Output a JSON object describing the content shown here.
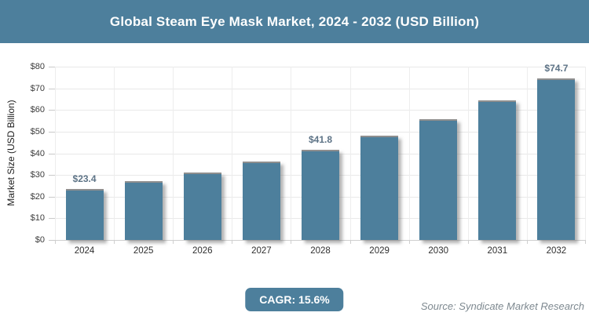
{
  "header": {
    "title": "Global Steam Eye Mask Market, 2024 - 2032 (USD Billion)",
    "background_color": "#4d7f9c",
    "text_color": "#ffffff"
  },
  "chart_data": {
    "type": "bar",
    "title": "Global Steam Eye Mask Market, 2024 - 2032 (USD Billion)",
    "xlabel": "",
    "ylabel": "Market Size (USD Billion)",
    "categories": [
      "2024",
      "2025",
      "2026",
      "2027",
      "2028",
      "2029",
      "2030",
      "2031",
      "2032"
    ],
    "values": [
      23.4,
      27.1,
      31.3,
      36.1,
      41.8,
      48.3,
      55.9,
      64.6,
      74.7
    ],
    "data_labels": [
      "$23.4",
      null,
      null,
      null,
      "$41.8",
      null,
      null,
      null,
      "$74.7"
    ],
    "ylim": [
      0,
      80
    ],
    "ytick_step": 10,
    "ytick_prefix": "$",
    "grid": true,
    "legend": false,
    "bar_color": "#4d7f9c"
  },
  "footer": {
    "cagr_label": "CAGR: 15.6%",
    "source": "Source: Syndicate Market Research"
  }
}
